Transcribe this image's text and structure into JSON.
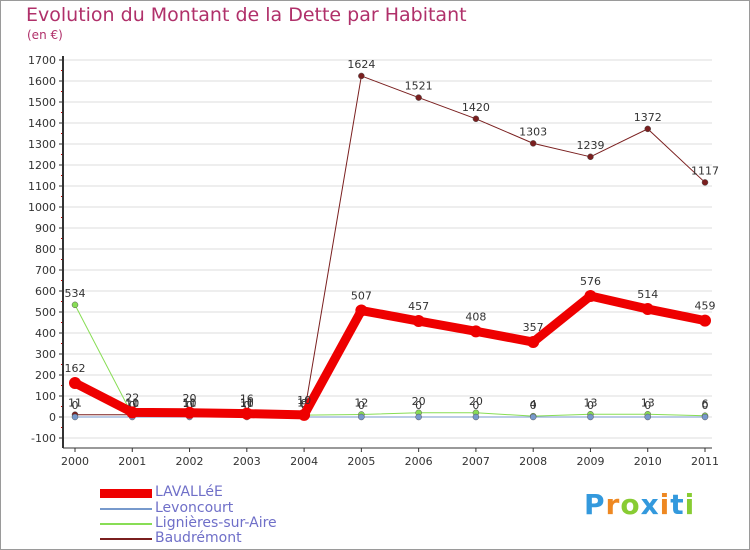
{
  "chart_data": {
    "type": "line",
    "title": "Evolution du Montant de la Dette par Habitant",
    "subtitle": "(en €)",
    "xlabel": "",
    "ylabel": "",
    "ylim": [
      -100,
      1700
    ],
    "yticks": [
      -100,
      0,
      100,
      200,
      300,
      400,
      500,
      600,
      700,
      800,
      900,
      1000,
      1100,
      1200,
      1300,
      1400,
      1500,
      1600,
      1700
    ],
    "x": [
      "2000",
      "2001",
      "2002",
      "2003",
      "2004",
      "2005",
      "2006",
      "2007",
      "2008",
      "2009",
      "2010",
      "2011"
    ],
    "grid": "y",
    "legend_position": "bottom-left",
    "series": [
      {
        "name": "Baudrémont",
        "color": "#7a1f1f",
        "width": 1,
        "values": [
          11,
          11,
          11,
          11,
          11,
          1624,
          1521,
          1420,
          1303,
          1239,
          1372,
          1117
        ]
      },
      {
        "name": "Lignières-sur-Aire",
        "color": "#88dd55",
        "width": 1,
        "values": [
          534,
          10,
          10,
          10,
          9,
          12,
          20,
          20,
          4,
          13,
          13,
          6
        ]
      },
      {
        "name": "Levoncourt",
        "color": "#7799cc",
        "width": 1,
        "values": [
          0,
          0,
          0,
          0,
          0,
          0,
          0,
          0,
          0,
          0,
          0,
          0
        ]
      },
      {
        "name": "LAVALLéE",
        "color": "#ee0000",
        "width": 9,
        "values": [
          162,
          22,
          20,
          16,
          10,
          507,
          457,
          408,
          357,
          576,
          514,
          459
        ]
      }
    ],
    "legend": [
      "LAVALLéE",
      "Levoncourt",
      "Lignières-sur-Aire",
      "Baudrémont"
    ]
  },
  "colors": {
    "title": "#b0306a",
    "legend_text": "#6f6fc8",
    "axis": "#333333",
    "grid": "#dddddd"
  },
  "brand": {
    "letters": [
      "P",
      "r",
      "o",
      "x",
      "i",
      "t",
      "i"
    ],
    "colors": [
      "#3399dd",
      "#ee8822",
      "#88cc33",
      "#3399dd",
      "#ee8822",
      "#3399dd",
      "#88cc33"
    ]
  }
}
